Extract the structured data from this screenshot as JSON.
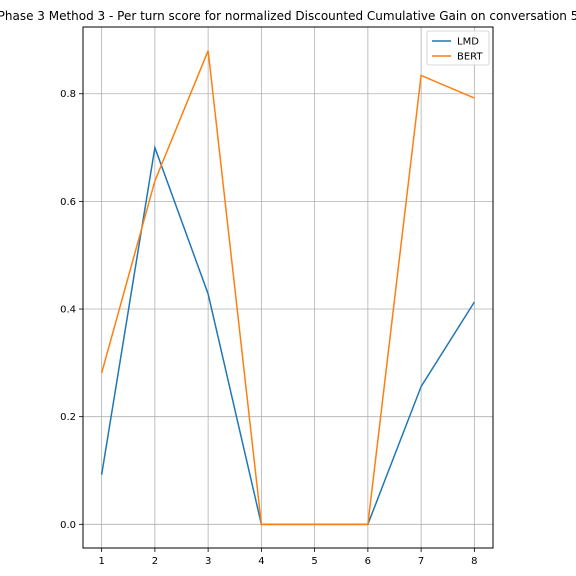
{
  "chart_data": {
    "type": "line",
    "title": "Phase 3 Method 3 - Per turn score for normalized Discounted Cumulative Gain on conversation 5",
    "xlabel": "",
    "ylabel": "",
    "x": [
      1,
      2,
      3,
      4,
      5,
      6,
      7,
      8
    ],
    "xlim": [
      0.65,
      8.35
    ],
    "ylim": [
      -0.044,
      0.924
    ],
    "xticks": [
      1,
      2,
      3,
      4,
      5,
      6,
      7,
      8
    ],
    "yticks": [
      "0.0",
      "0.2",
      "0.4",
      "0.6",
      "0.8"
    ],
    "grid": true,
    "legend": "top-right",
    "series": [
      {
        "name": "LMD",
        "color": "#1f77b4",
        "values": [
          0.092,
          0.7,
          0.428,
          0.0,
          0.0,
          0.0,
          0.256,
          0.413
        ]
      },
      {
        "name": "BERT",
        "color": "#ff7f0e",
        "values": [
          0.281,
          0.638,
          0.88,
          0.0,
          0.0,
          0.0,
          0.834,
          0.792
        ]
      }
    ]
  }
}
